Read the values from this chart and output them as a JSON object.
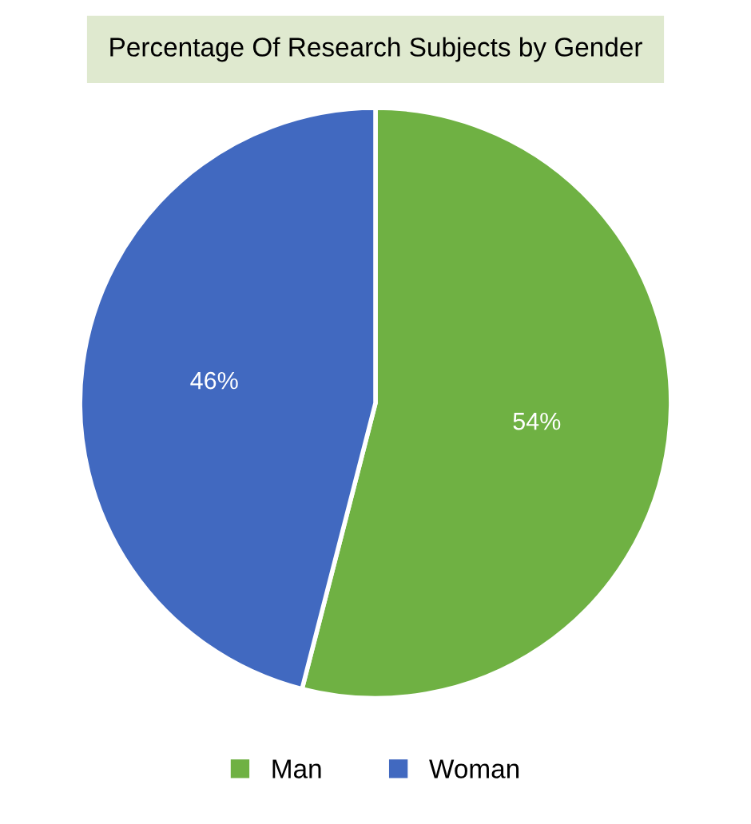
{
  "chart_data": {
    "type": "pie",
    "title": "Percentage Of Research Subjects by Gender",
    "categories": [
      "Man",
      "Woman"
    ],
    "values": [
      54,
      46
    ],
    "colors": [
      "#6fb143",
      "#4169c0"
    ],
    "value_labels": [
      "54%",
      "46%"
    ],
    "legend": "bottom"
  }
}
